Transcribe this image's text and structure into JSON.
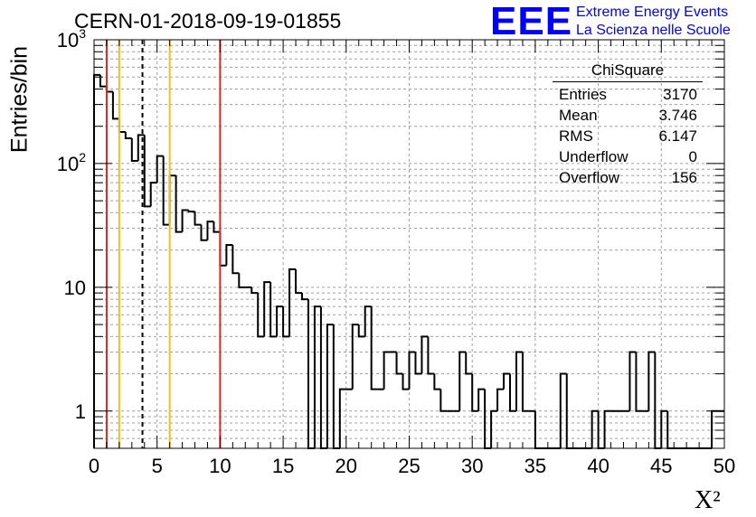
{
  "header": {
    "title": "CERN-01-2018-09-19-01855",
    "logo_text": "EEE",
    "logo_line1": "Extreme Energy Events",
    "logo_line2": "La Scienza nelle Scuole"
  },
  "stats": {
    "title": "ChiSquare",
    "rows": [
      {
        "label": "Entries",
        "value": "3170"
      },
      {
        "label": "Mean",
        "value": "3.746"
      },
      {
        "label": "RMS",
        "value": "6.147"
      },
      {
        "label": "Underflow",
        "value": "0"
      },
      {
        "label": "Overflow",
        "value": "156"
      }
    ]
  },
  "chart_data": {
    "type": "bar",
    "subtype": "step-histogram",
    "xlabel": "X²",
    "ylabel": "Entries/bin",
    "xlim": [
      0,
      50
    ],
    "ylim": [
      0.5,
      1000
    ],
    "yscale": "log",
    "grid": true,
    "bin_width": 0.5,
    "x_ticks": [
      "0",
      "5",
      "10",
      "15",
      "20",
      "25",
      "30",
      "35",
      "40",
      "45",
      "50"
    ],
    "y_ticks": [
      {
        "value": 1,
        "label": "1"
      },
      {
        "value": 10,
        "label": "10"
      },
      {
        "value": 100,
        "label": "10²"
      },
      {
        "value": 1000,
        "label": "10³"
      }
    ],
    "values": [
      520,
      420,
      380,
      230,
      180,
      160,
      105,
      170,
      45,
      70,
      115,
      32,
      80,
      28,
      42,
      41,
      32,
      24,
      34,
      28,
      15,
      22,
      13,
      10,
      10,
      9,
      4,
      11,
      4,
      7,
      4,
      14,
      9,
      8,
      0,
      7,
      0,
      5,
      0,
      1.5,
      1.5,
      5,
      4,
      7,
      1.5,
      1.5,
      3,
      3,
      2,
      1.5,
      3,
      2,
      4,
      2,
      1.5,
      1,
      1,
      1,
      3,
      2,
      1,
      1.5,
      0,
      1,
      1.5,
      2,
      1,
      3,
      1,
      1,
      0,
      0,
      0,
      0,
      2,
      0,
      0,
      0,
      0,
      1,
      0,
      1,
      1,
      1,
      1,
      3,
      1,
      1,
      3,
      0,
      1,
      0,
      0,
      0,
      0,
      0,
      0,
      0,
      1,
      1
    ],
    "vertical_lines": [
      {
        "x": 1,
        "color": "#e8221c",
        "style": "solid"
      },
      {
        "x": 2,
        "color": "#f2c01e",
        "style": "solid"
      },
      {
        "x": 3.84,
        "color": "#000000",
        "style": "dashed"
      },
      {
        "x": 6,
        "color": "#f2c01e",
        "style": "solid"
      },
      {
        "x": 10,
        "color": "#e8221c",
        "style": "solid"
      }
    ]
  }
}
